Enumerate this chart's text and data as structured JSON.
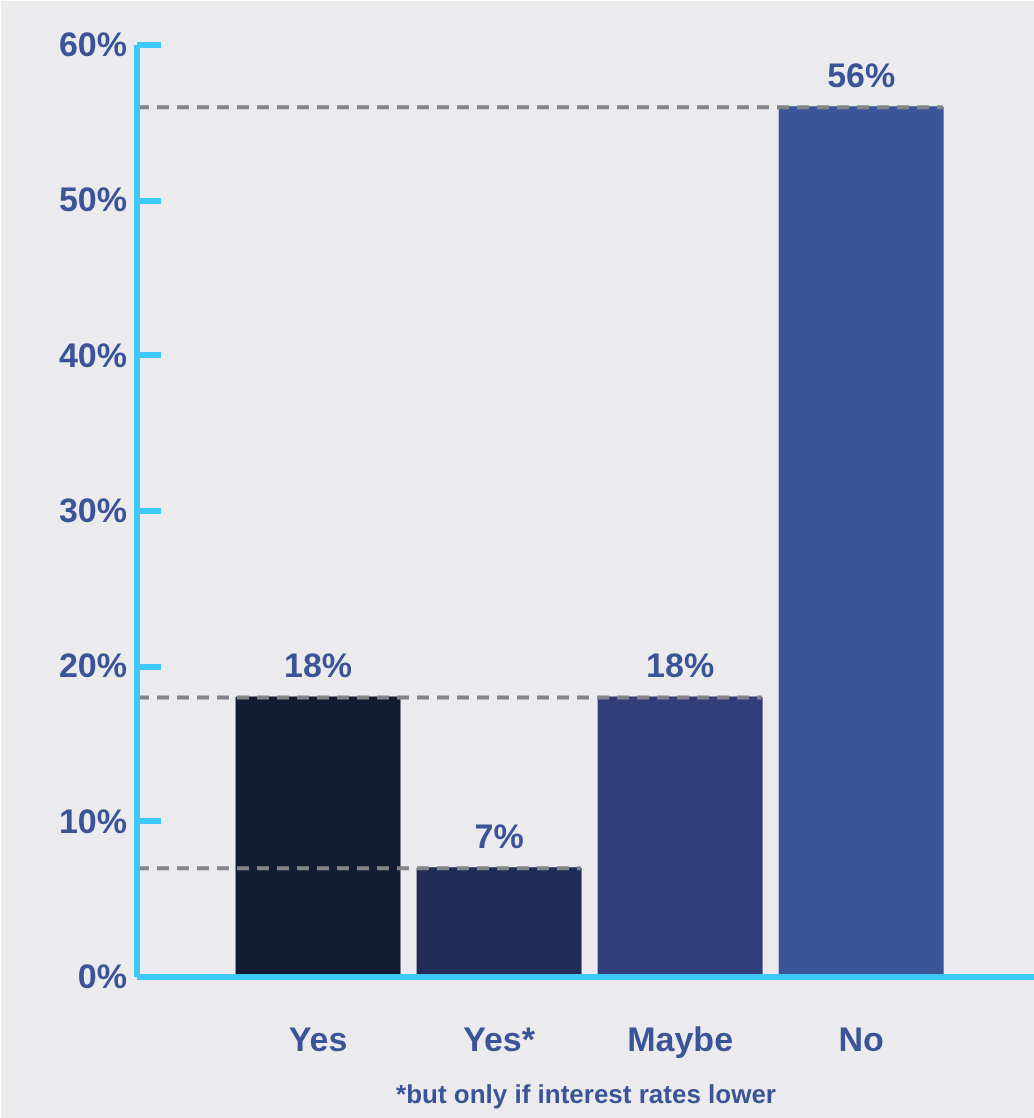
{
  "chart_data": {
    "type": "bar",
    "categories": [
      "Yes",
      "Yes*",
      "Maybe",
      "No"
    ],
    "values": [
      18,
      7,
      18,
      56
    ],
    "colors": [
      "#121d31",
      "#212c57",
      "#323d7b",
      "#3a5598"
    ],
    "value_labels": [
      "18%",
      "7%",
      "18%",
      "56%"
    ],
    "ylim": [
      0,
      60
    ],
    "yticks": [
      {
        "value": 0,
        "label": "0%"
      },
      {
        "value": 10,
        "label": "10%"
      },
      {
        "value": 20,
        "label": "20%"
      },
      {
        "value": 30,
        "label": "30%"
      },
      {
        "value": 40,
        "label": "40%"
      },
      {
        "value": 50,
        "label": "50%"
      },
      {
        "value": 60,
        "label": "60%"
      }
    ],
    "ref_lines": [
      {
        "axis": "y",
        "value": 56,
        "color": "#838589",
        "line_style": "dashed"
      },
      {
        "axis": "y",
        "value": 18,
        "color": "#838589",
        "line_style": "dashed"
      },
      {
        "axis": "y",
        "value": 7,
        "color": "#838589",
        "line_style": "dashed"
      }
    ],
    "annotations": [
      "*but only if interest rates lower"
    ],
    "grid": false
  }
}
